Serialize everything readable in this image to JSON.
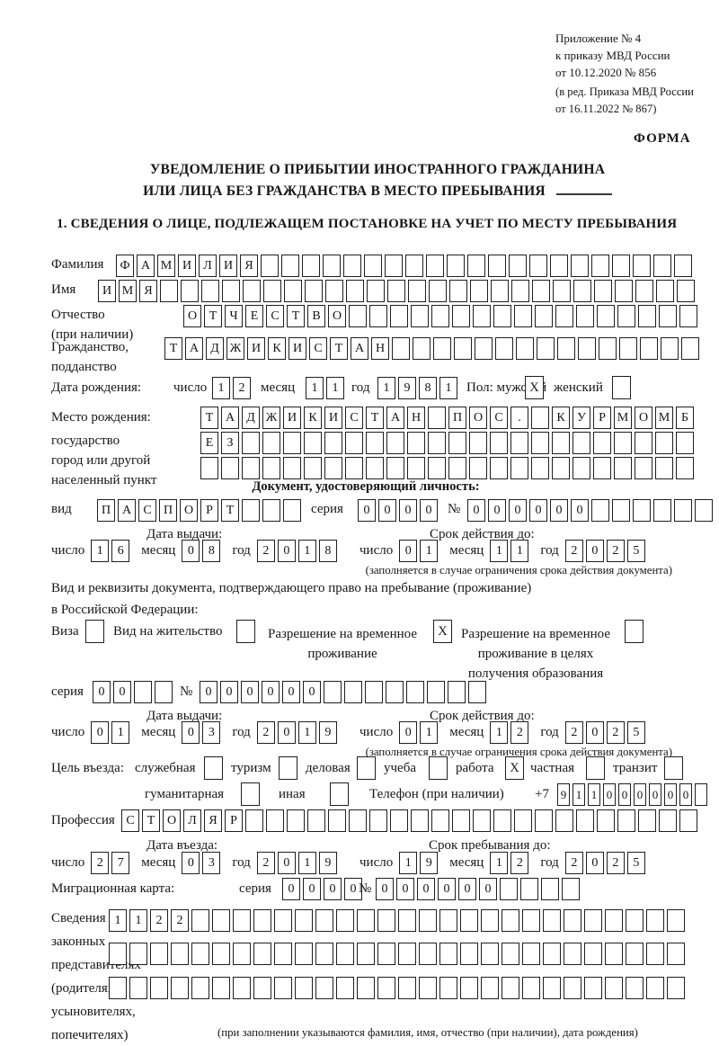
{
  "ref_block": {
    "line1": "Приложение № 4",
    "line2": "к приказу МВД России",
    "line3": "от 10.12.2020 № 856",
    "line4": "(в ред. Приказа МВД России",
    "line5": "от 16.11.2022 № 867)"
  },
  "forma": "ФОРМА",
  "title": {
    "line1": "УВЕДОМЛЕНИЕ О ПРИБЫТИИ ИНОСТРАННОГО ГРАЖДАНИНА",
    "line2": "ИЛИ ЛИЦА БЕЗ ГРАЖДАНСТВА В МЕСТО ПРЕБЫВАНИЯ"
  },
  "section1": "1. СВЕДЕНИЯ О ЛИЦЕ, ПОДЛЕЖАЩЕМ ПОСТАНОВКЕ НА УЧЕТ ПО МЕСТУ ПРЕБЫВАНИЯ",
  "labels": {
    "num": "число",
    "month": "месяц",
    "year": "год"
  },
  "person": {
    "surname": {
      "label": "Фамилия",
      "cells": {
        "chars": "ФАМИЛИЯ",
        "len": 28
      }
    },
    "name": {
      "label": "Имя",
      "cells": {
        "chars": "ИМЯ",
        "len": 29
      }
    },
    "patronymic": {
      "label1": "Отчество",
      "label2": "(при наличии)",
      "cells": {
        "chars": "ОТЧЕСТВО",
        "len": 25
      }
    },
    "citizenship": {
      "label1": "Гражданство,",
      "label2": "подданство",
      "cells": {
        "chars": "ТАДЖИКИСТАН",
        "len": 26
      }
    },
    "birth_date": {
      "label": "Дата рождения:",
      "day": "12",
      "month": "11",
      "year": "1981",
      "sex_label": "Пол: мужской",
      "male": "X",
      "female_label": "женский",
      "female": ""
    },
    "birth_place": {
      "label1": "Место рождения:",
      "label2": "государство",
      "label3": "город или другой",
      "label4": "населенный пункт",
      "row1": {
        "chars": "ТАДЖИКИСТАН ПОС. КУРМОМБ",
        "len": 24
      },
      "row2": {
        "chars": "ЕЗ",
        "len": 24
      },
      "row3": {
        "chars": "",
        "len": 24
      }
    }
  },
  "identity_doc": {
    "header": "Документ, удостоверяющий личность:",
    "kind_label": "вид",
    "kind": {
      "chars": "ПАСПОРТ",
      "len": 10
    },
    "series_label": "серия",
    "series": "0000",
    "number_label": "№",
    "number": {
      "chars": "000000",
      "len": 12
    },
    "issue_title": "Дата выдачи:",
    "issue": {
      "d": "16",
      "m": "08",
      "y": "2018"
    },
    "expiry_title": "Срок действия до:",
    "expiry": {
      "d": "01",
      "m": "11",
      "y": "2025"
    },
    "note": "(заполняется в случае ограничения срока действия документа)"
  },
  "residence_doc": {
    "line1": "Вид и реквизиты документа, подтверждающего право на пребывание (проживание)",
    "line2": "в Российской Федерации:",
    "opt1": {
      "label": "Виза",
      "value": ""
    },
    "opt2": {
      "label": "Вид на жительство",
      "value": ""
    },
    "opt3": {
      "lines": [
        "Разрешение на временное",
        "проживание"
      ],
      "value": "X"
    },
    "opt4": {
      "lines": [
        "Разрешение на временное",
        "проживание в целях",
        "получения образования"
      ],
      "value": ""
    },
    "series_label": "серия",
    "series": {
      "chars": "00",
      "len": 4
    },
    "number_label": "№",
    "number": {
      "chars": "000000",
      "len": 14
    },
    "issue_title": "Дата выдачи:",
    "issue": {
      "d": "01",
      "m": "03",
      "y": "2019"
    },
    "expiry_title": "Срок действия до:",
    "expiry": {
      "d": "01",
      "m": "12",
      "y": "2025"
    },
    "note": "(заполняется в случае ограничения срока действия документа)"
  },
  "visit": {
    "purpose_label": "Цель въезда:",
    "p1": {
      "label": "служебная",
      "value": ""
    },
    "p2": {
      "label": "туризм",
      "value": ""
    },
    "p3": {
      "label": "деловая",
      "value": ""
    },
    "p4": {
      "label": "учеба",
      "value": ""
    },
    "p5": {
      "label": "работа",
      "value": "X"
    },
    "p6": {
      "label": "частная",
      "value": ""
    },
    "p7": {
      "label": "транзит",
      "value": ""
    },
    "p8": {
      "label": "гуманитарная",
      "value": ""
    },
    "p9": {
      "label": "иная",
      "value": ""
    },
    "phone_label": "Телефон (при наличии)",
    "phone_prefix": "+7",
    "phone": {
      "chars": "911000000",
      "len": 10
    },
    "profession_label": "Профессия",
    "profession": {
      "chars": "СТОЛЯР",
      "len": 28
    },
    "entry_title": "Дата въезда:",
    "entry": {
      "d": "27",
      "m": "03",
      "y": "2019"
    },
    "stay_title": "Срок пребывания до:",
    "stay": {
      "d": "19",
      "m": "12",
      "y": "2025"
    },
    "mc_label": "Миграционная карта:",
    "mc_series_label": "серия",
    "mc_series": "0000",
    "mc_number_label": "№",
    "mc_number": {
      "chars": "000000",
      "len": 10
    }
  },
  "representatives": {
    "label_lines": [
      "Сведения о",
      "законных",
      "представителях",
      "(родителях,",
      "усыновителях,",
      "попечителях)"
    ],
    "row1": {
      "chars": "1122",
      "len": 28
    },
    "row2": {
      "chars": "",
      "len": 28
    },
    "row3": {
      "chars": "",
      "len": 28
    },
    "note": "(при заполнении указываются фамилия, имя, отчество (при наличии), дата рождения)"
  }
}
